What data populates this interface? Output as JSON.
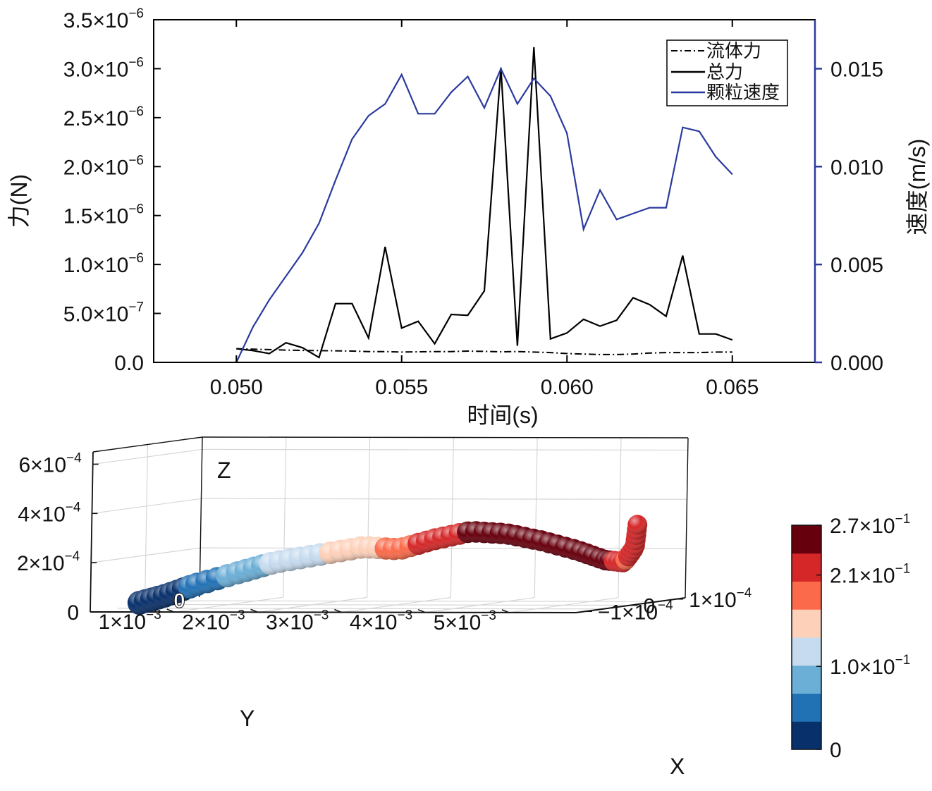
{
  "chart_data": [
    {
      "type": "line",
      "xlabel": "时间(s)",
      "ylabel": "力(N)",
      "y2label": "速度(m/s)",
      "xlim": [
        0.0475,
        0.0675
      ],
      "ylim": [
        0,
        3.5e-06
      ],
      "y2lim": [
        0,
        0.0175
      ],
      "x_ticks": [
        {
          "v": 0.05,
          "label": "0.050"
        },
        {
          "v": 0.055,
          "label": "0.055"
        },
        {
          "v": 0.06,
          "label": "0.060"
        },
        {
          "v": 0.065,
          "label": "0.065"
        }
      ],
      "y_ticks": [
        {
          "v": 0,
          "m": "0.0",
          "e": ""
        },
        {
          "v": 5e-07,
          "m": "5.0×10",
          "e": "−7"
        },
        {
          "v": 1e-06,
          "m": "1.0×10",
          "e": "−6"
        },
        {
          "v": 1.5e-06,
          "m": "1.5×10",
          "e": "−6"
        },
        {
          "v": 2e-06,
          "m": "2.0×10",
          "e": "−6"
        },
        {
          "v": 2.5e-06,
          "m": "2.5×10",
          "e": "−6"
        },
        {
          "v": 3e-06,
          "m": "3.0×10",
          "e": "−6"
        },
        {
          "v": 3.5e-06,
          "m": "3.5×10",
          "e": "−6"
        }
      ],
      "y2_ticks": [
        {
          "v": 0,
          "label": "0.000"
        },
        {
          "v": 0.005,
          "label": "0.005"
        },
        {
          "v": 0.01,
          "label": "0.010"
        },
        {
          "v": 0.015,
          "label": "0.015"
        }
      ],
      "legend_position": "top-right",
      "series": [
        {
          "name": "流体力",
          "axis": "left",
          "color": "#000000",
          "style": "dashdot",
          "x": [
            0.05,
            0.0505,
            0.051,
            0.0515,
            0.052,
            0.0525,
            0.053,
            0.0535,
            0.054,
            0.0545,
            0.055,
            0.0555,
            0.056,
            0.0565,
            0.057,
            0.0575,
            0.058,
            0.0585,
            0.059,
            0.0595,
            0.06,
            0.0605,
            0.061,
            0.0615,
            0.062,
            0.0625,
            0.063,
            0.0635,
            0.064,
            0.0645,
            0.065
          ],
          "y": [
            1.4e-07,
            1.35e-07,
            1.3e-07,
            1.25e-07,
            1.22e-07,
            1.2e-07,
            1.18e-07,
            1.15e-07,
            1.1e-07,
            1.1e-07,
            1.05e-07,
            1.08e-07,
            1.1e-07,
            1.1e-07,
            1.15e-07,
            1.12e-07,
            1.08e-07,
            1.1e-07,
            1.05e-07,
            1e-07,
            9e-08,
            8.5e-08,
            8e-08,
            8e-08,
            8.5e-08,
            9.5e-08,
            1e-07,
            1e-07,
            1e-07,
            1.05e-07,
            1.05e-07
          ]
        },
        {
          "name": "总力",
          "axis": "left",
          "color": "#000000",
          "style": "solid",
          "x": [
            0.05,
            0.0505,
            0.051,
            0.0515,
            0.052,
            0.0525,
            0.053,
            0.0535,
            0.054,
            0.0545,
            0.055,
            0.0555,
            0.056,
            0.0565,
            0.057,
            0.0575,
            0.058,
            0.0585,
            0.059,
            0.0595,
            0.06,
            0.0605,
            0.061,
            0.0615,
            0.062,
            0.0625,
            0.063,
            0.0635,
            0.064,
            0.0645,
            0.065
          ],
          "y": [
            1.4e-07,
            1.2e-07,
            9e-08,
            2e-07,
            1.5e-07,
            5e-08,
            6e-07,
            6e-07,
            2.5e-07,
            1.18e-06,
            3.5e-07,
            4.2e-07,
            1.9e-07,
            4.9e-07,
            4.8e-07,
            7.3e-07,
            3.01e-06,
            1.7e-07,
            3.22e-06,
            2.4e-07,
            3e-07,
            4.4e-07,
            3.7e-07,
            4.3e-07,
            6.6e-07,
            5.9e-07,
            4.7e-07,
            1.09e-06,
            2.9e-07,
            2.9e-07,
            2.3e-07
          ]
        },
        {
          "name": "颗粒速度",
          "axis": "right",
          "color": "#2b3a9e",
          "style": "solid",
          "x": [
            0.05,
            0.0505,
            0.051,
            0.0515,
            0.052,
            0.0525,
            0.053,
            0.0535,
            0.054,
            0.0545,
            0.055,
            0.0555,
            0.056,
            0.0565,
            0.057,
            0.0575,
            0.058,
            0.0585,
            0.059,
            0.0595,
            0.06,
            0.0605,
            0.061,
            0.0615,
            0.062,
            0.0625,
            0.063,
            0.0635,
            0.064,
            0.0645,
            0.065
          ],
          "y": [
            0.0,
            0.0018,
            0.0032,
            0.0044,
            0.0056,
            0.0071,
            0.0093,
            0.0114,
            0.0126,
            0.0132,
            0.0147,
            0.0127,
            0.0127,
            0.0138,
            0.0146,
            0.013,
            0.015,
            0.0132,
            0.0145,
            0.0136,
            0.0117,
            0.0068,
            0.0088,
            0.0073,
            0.0076,
            0.0079,
            0.0079,
            0.012,
            0.0118,
            0.0105,
            0.0096
          ]
        }
      ]
    },
    {
      "type": "scatter3d",
      "x_axis_label": "X",
      "y_axis_label": "Y",
      "z_axis_label": "Z",
      "z_ticks": [
        {
          "v": 0,
          "m": "0",
          "e": ""
        },
        {
          "v": 0.0002,
          "m": "2×10",
          "e": "−4"
        },
        {
          "v": 0.0004,
          "m": "4×10",
          "e": "−4"
        },
        {
          "v": 0.0006,
          "m": "6×10",
          "e": "−4"
        }
      ],
      "y_ticks": [
        {
          "v": 0.001,
          "m": "1×10",
          "e": "−3"
        },
        {
          "v": 0.002,
          "m": "2×10",
          "e": "−3"
        },
        {
          "v": 0.003,
          "m": "3×10",
          "e": "−3"
        },
        {
          "v": 0.004,
          "m": "4×10",
          "e": "−3"
        },
        {
          "v": 0.005,
          "m": "5×10",
          "e": "−3"
        }
      ],
      "x_ticks": [
        {
          "v": -0.0001,
          "m": "−1×10",
          "e": "−4"
        },
        {
          "v": 0,
          "m": "0",
          "e": ""
        },
        {
          "v": 0.0001,
          "m": "1×10",
          "e": "−4"
        }
      ],
      "inner_origin_label": "0",
      "path_y": [
        0.0,
        0.0003,
        0.0006,
        0.0011,
        0.0015,
        0.002,
        0.0025,
        0.0029,
        0.0033,
        0.0037,
        0.0041,
        0.0045,
        0.0049,
        0.0052,
        0.0054,
        0.0055,
        0.0055
      ],
      "path_z": [
        1e-05,
        4e-05,
        8e-05,
        0.00013,
        0.00017,
        0.0002,
        0.00023,
        0.00022,
        0.00026,
        0.00029,
        0.00028,
        0.00025,
        0.00021,
        0.00017,
        0.00016,
        0.00022,
        0.00031
      ],
      "path_speed": [
        0.0,
        0.02,
        0.04,
        0.08,
        0.11,
        0.13,
        0.15,
        0.19,
        0.22,
        0.24,
        0.26,
        0.27,
        0.27,
        0.25,
        0.2,
        0.21,
        0.23
      ],
      "colorbar": {
        "min": 0,
        "max": 0.27,
        "levels": [
          "#08306b",
          "#2171b5",
          "#6baed6",
          "#c6dbef",
          "#fdd0b9",
          "#fb6a4a",
          "#d62728",
          "#67000d"
        ],
        "ticks": [
          {
            "v": 0,
            "m": "0",
            "e": ""
          },
          {
            "v": 0.1,
            "m": "1.0×10",
            "e": "−1"
          },
          {
            "v": 0.21,
            "m": "2.1×10",
            "e": "−1"
          },
          {
            "v": 0.27,
            "m": "2.7×10",
            "e": "−1"
          }
        ]
      }
    }
  ]
}
